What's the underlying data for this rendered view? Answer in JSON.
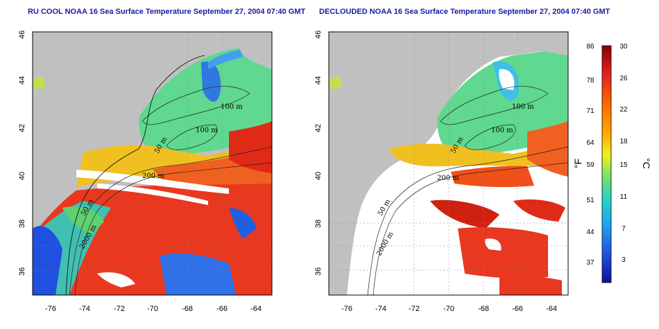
{
  "panels": [
    {
      "title": "RU COOL NOAA 16 Sea Surface Temperature September 27, 2004 07:40 GMT",
      "x_ticks": [
        "-76",
        "-74",
        "-72",
        "-70",
        "-68",
        "-66",
        "-64"
      ],
      "y_ticks": [
        "36",
        "38",
        "40",
        "42",
        "44",
        "46"
      ],
      "contour_labels": [
        "100 m",
        "100 m",
        "50 m",
        "200 m",
        "50 m",
        "2000 m"
      ]
    },
    {
      "title": "DECLOUDED NOAA 16 Sea Surface Temperature September 27, 2004 07:40 GMT",
      "x_ticks": [
        "-76",
        "-74",
        "-72",
        "-70",
        "-68",
        "-66",
        "-64"
      ],
      "y_ticks": [
        "36",
        "38",
        "40",
        "42",
        "44",
        "46"
      ],
      "contour_labels": [
        "100 m",
        "100 m",
        "50 m",
        "200 m",
        "50 m",
        "2000 m"
      ]
    }
  ],
  "colorbar": {
    "fahrenheit_ticks": [
      "86",
      "78",
      "71",
      "64",
      "59",
      "51",
      "44",
      "37"
    ],
    "celsius_ticks": [
      "30",
      "26",
      "22",
      "18",
      "15",
      "11",
      "7",
      "3"
    ],
    "fahrenheit_unit": "°F",
    "celsius_unit": "°C",
    "colors": [
      "#8b0000",
      "#e62020",
      "#ff6a00",
      "#ffb000",
      "#f0f020",
      "#70e070",
      "#20d0d0",
      "#20a0f0",
      "#2050e0",
      "#10109a"
    ]
  },
  "colors": {
    "land": "#c0c0c0",
    "cloud": "#ffffff",
    "title": "#1a1aa8"
  }
}
